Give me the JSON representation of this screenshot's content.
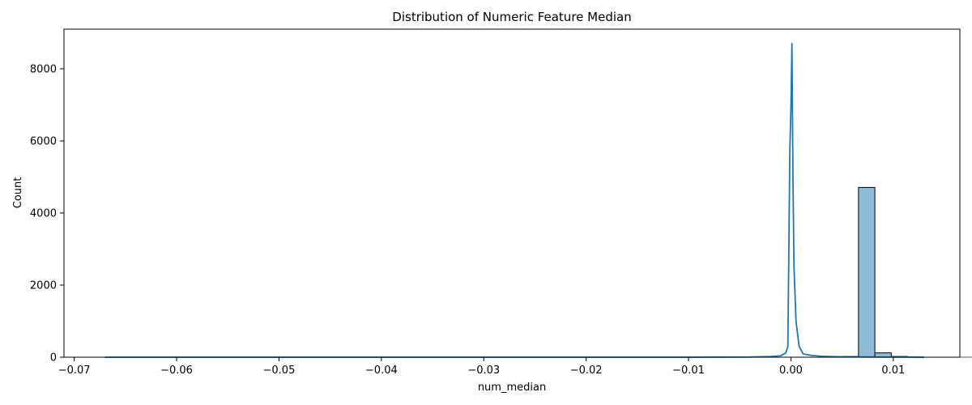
{
  "chart_data": {
    "type": "bar",
    "title": "Distribution of Numeric Feature Median",
    "xlabel": "num_median",
    "ylabel": "Count",
    "xlim": [
      -0.071,
      0.0165
    ],
    "ylim": [
      0,
      9100
    ],
    "grid": false,
    "legend": "none",
    "x_ticks": [
      {
        "value": -0.07,
        "label": "−0.07"
      },
      {
        "value": -0.06,
        "label": "−0.06"
      },
      {
        "value": -0.05,
        "label": "−0.05"
      },
      {
        "value": -0.04,
        "label": "−0.04"
      },
      {
        "value": -0.03,
        "label": "−0.03"
      },
      {
        "value": -0.02,
        "label": "−0.02"
      },
      {
        "value": -0.01,
        "label": "−0.01"
      },
      {
        "value": 0.0,
        "label": "0.00"
      },
      {
        "value": 0.01,
        "label": "0.01"
      }
    ],
    "y_ticks": [
      {
        "value": 0,
        "label": "0"
      },
      {
        "value": 2000,
        "label": "2000"
      },
      {
        "value": 4000,
        "label": "4000"
      },
      {
        "value": 6000,
        "label": "6000"
      },
      {
        "value": 8000,
        "label": "8000"
      }
    ],
    "histogram": {
      "bin_start": -0.067,
      "bin_width": 0.0016,
      "counts": [
        1,
        0,
        0,
        0,
        0,
        0,
        0,
        0,
        0,
        0,
        0,
        0,
        0,
        0,
        0,
        0,
        0,
        0,
        0,
        0,
        0,
        0,
        0,
        0,
        0,
        0,
        0,
        0,
        0,
        0,
        0,
        0,
        0,
        0,
        0,
        0,
        0,
        0,
        0,
        0,
        1,
        1,
        2,
        5,
        12,
        25,
        4710,
        120,
        25,
        8,
        4,
        2,
        1,
        1,
        1,
        1,
        1,
        1,
        1,
        1
      ],
      "fill_color": "#1f77b4",
      "fill_opacity": 0.5,
      "edge_color": "#000000"
    },
    "kde": {
      "color": "#1f77b4",
      "x": [
        -0.067,
        -0.05,
        -0.03,
        -0.01,
        -0.004,
        -0.002,
        -0.001,
        -0.0005,
        -0.0003,
        -0.0002,
        -0.0001,
        0.0,
        0.0001,
        0.0002,
        0.0003,
        0.0005,
        0.0008,
        0.0012,
        0.002,
        0.003,
        0.005,
        0.008,
        0.011,
        0.013
      ],
      "y": [
        0,
        0,
        0,
        0,
        5,
        20,
        40,
        120,
        300,
        3000,
        5800,
        6900,
        8700,
        5000,
        2500,
        1000,
        300,
        90,
        50,
        25,
        10,
        5,
        2,
        0
      ]
    }
  }
}
